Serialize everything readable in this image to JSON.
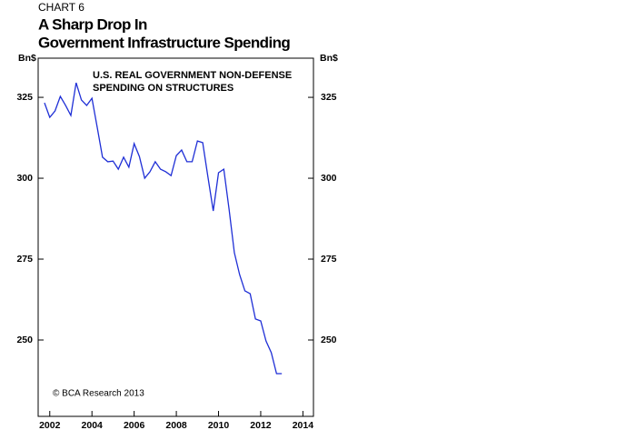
{
  "chart_data": {
    "type": "line",
    "label": "CHART 6",
    "title": [
      "A Sharp Drop In",
      "Government Infrastructure Spending"
    ],
    "y_label": "Bn$",
    "annotation": [
      "U.S. REAL GOVERNMENT NON-DEFENSE",
      "SPENDING ON STRUCTURES"
    ],
    "source": "© BCA Research 2013",
    "x": [
      2001.75,
      2002,
      2002.25,
      2002.5,
      2002.75,
      2003,
      2003.25,
      2003.5,
      2003.75,
      2004,
      2004.25,
      2004.5,
      2004.75,
      2005,
      2005.25,
      2005.5,
      2005.75,
      2006,
      2006.25,
      2006.5,
      2006.75,
      2007,
      2007.25,
      2007.5,
      2007.75,
      2008,
      2008.25,
      2008.5,
      2008.75,
      2009,
      2009.25,
      2009.5,
      2009.75,
      2010,
      2010.25,
      2010.5,
      2010.75,
      2011,
      2011.25,
      2011.5,
      2011.75,
      2012,
      2012.25,
      2012.5,
      2012.75,
      2013
    ],
    "series": [
      {
        "color": "#1f2fd6",
        "values": [
          323.3,
          318.8,
          320.8,
          325.3,
          322.5,
          319.4,
          329.5,
          324.2,
          322.5,
          324.7,
          315.7,
          306.5,
          305.1,
          305.3,
          302.8,
          306.5,
          303.4,
          310.7,
          306.7,
          300,
          302,
          305.1,
          302.8,
          302,
          300.8,
          307,
          308.7,
          305.1,
          305.1,
          311.5,
          311,
          300.3,
          289.9,
          301.7,
          302.8,
          290.4,
          277,
          270.2,
          265.2,
          264.3,
          256.5,
          255.9,
          249.7,
          246.1,
          239.6,
          239.6
        ]
      }
    ],
    "xlim": [
      2001.45,
      2014.5
    ],
    "xticks": [
      2002,
      2004,
      2006,
      2008,
      2010,
      2012,
      2014
    ],
    "ylim": [
      226.4,
      337.1
    ],
    "yticks": [
      250,
      275,
      300,
      325
    ]
  }
}
